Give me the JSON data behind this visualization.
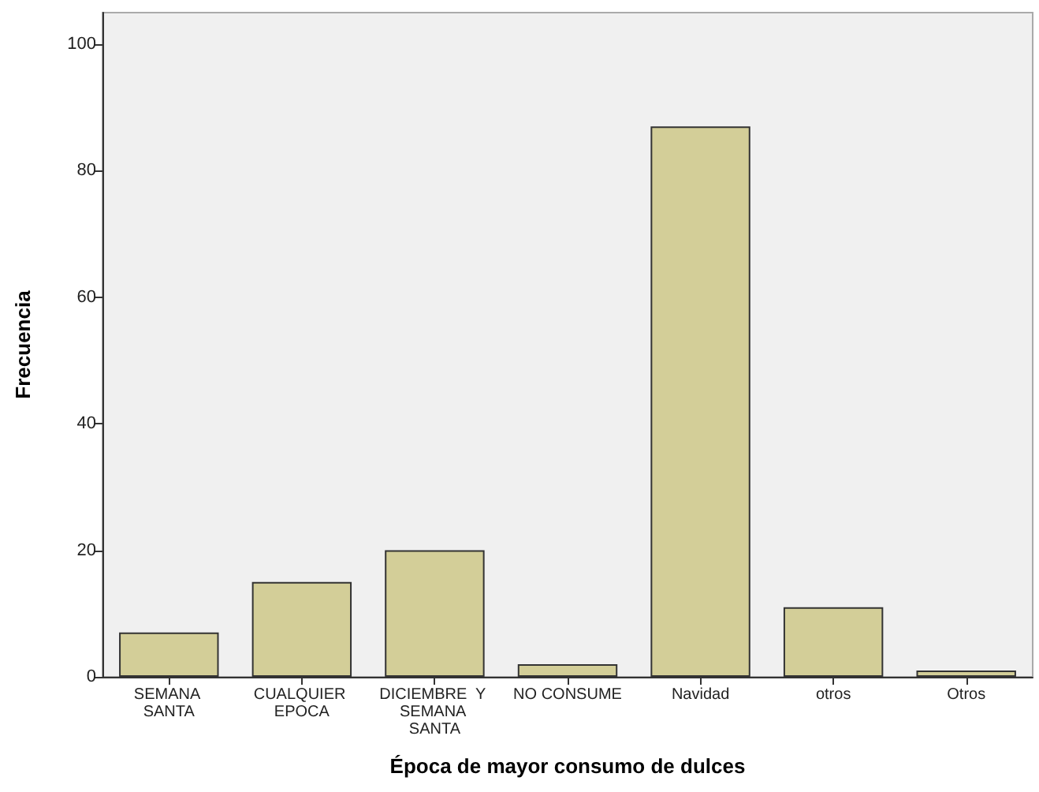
{
  "chart_data": {
    "type": "bar",
    "xlabel": "Época de mayor consumo de dulces",
    "ylabel": "Frecuencia",
    "categories": [
      "SEMANA SANTA",
      "CUALQUIER EPOCA",
      "DICIEMBRE  Y SEMANA SANTA",
      "NO CONSUME",
      "Navidad",
      "otros",
      "Otros"
    ],
    "values": [
      7,
      15,
      20,
      2,
      87,
      11,
      1
    ],
    "color": "#d3ce98",
    "ylim": [
      0,
      105
    ],
    "yticks": [
      0,
      20,
      40,
      60,
      80,
      100
    ],
    "grid": false
  }
}
